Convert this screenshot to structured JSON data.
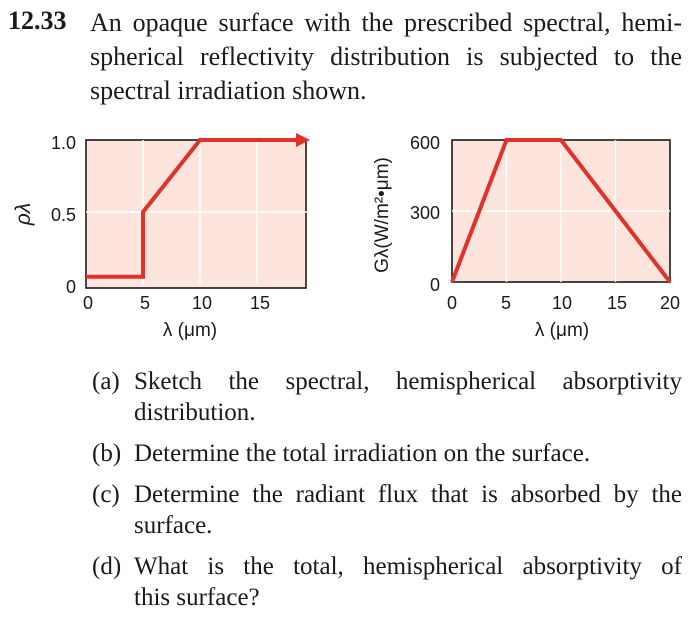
{
  "problem": {
    "number": "12.33",
    "statement_lines": [
      "An opaque surface with the prescribed spectral, hemi-",
      "spherical reflectivity distribution is subjected to the",
      "spectral irradiation shown."
    ]
  },
  "chart_data": [
    {
      "type": "line",
      "ylabel": "ρλ",
      "xlabel": "λ (μm)",
      "x_ticks": [
        "0",
        "5",
        "10",
        "15"
      ],
      "y_ticks": [
        "0",
        "0.5",
        "1.0"
      ],
      "xlim": [
        0,
        20
      ],
      "ylim": [
        0,
        1.0
      ],
      "series": [
        {
          "x": [
            0,
            5,
            5,
            10,
            20
          ],
          "y": [
            0.05,
            0.05,
            0.5,
            1.0,
            1.0
          ]
        }
      ],
      "line_color": "#e0322a",
      "fill_color": "#fde4dd"
    },
    {
      "type": "line",
      "ylabel": "Gλ(W/m²•μm)",
      "xlabel": "λ (μm)",
      "x_ticks": [
        "0",
        "5",
        "10",
        "15",
        "20"
      ],
      "y_ticks": [
        "0",
        "300",
        "600"
      ],
      "xlim": [
        0,
        20
      ],
      "ylim": [
        0,
        600
      ],
      "series": [
        {
          "x": [
            0,
            5,
            10,
            20
          ],
          "y": [
            0,
            600,
            600,
            0
          ]
        }
      ],
      "line_color": "#e0322a",
      "fill_color": "#fde4dd"
    }
  ],
  "parts": [
    {
      "label": "(a)",
      "lines": [
        "Sketch the spectral, hemispherical absorptivity",
        "distribution."
      ]
    },
    {
      "label": "(b)",
      "lines": [
        "Determine the total irradiation on the surface."
      ]
    },
    {
      "label": "(c)",
      "lines": [
        "Determine the radiant flux that is absorbed by the",
        "surface."
      ]
    },
    {
      "label": "(d)",
      "lines": [
        "What is the total, hemispherical absorptivity of",
        "this surface?"
      ]
    }
  ]
}
